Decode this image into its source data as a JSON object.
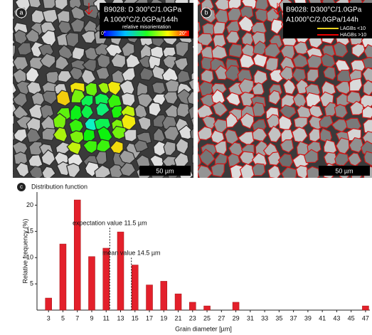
{
  "panel_a": {
    "label": "a",
    "line1": "B9028: D 300°C/1.0GPa",
    "line2": "A 1000°C/2.0GPa/144h",
    "colorbar_title": "relative misorientation",
    "colorbar_min": "0°",
    "colorbar_max": "20°",
    "scale_bar": "50 µm"
  },
  "panel_b": {
    "label": "b",
    "line1": "B9028: D300°C/1.0GPa",
    "line2": "A1000°C/2.0GPa/144h",
    "legend": [
      "LAGBs <10",
      "HAGBs >10"
    ],
    "scale_bar": "50 µm"
  },
  "panel_c": {
    "label": "c"
  },
  "chart_data": {
    "type": "bar",
    "title": "Distribution function",
    "x": [
      3,
      5,
      7,
      9,
      11,
      13,
      15,
      17,
      19,
      21,
      23,
      25,
      27,
      29,
      31,
      33,
      35,
      37,
      39,
      41,
      43,
      45,
      47
    ],
    "values": [
      2.3,
      12.6,
      21,
      10.2,
      11.8,
      14.9,
      8.6,
      4.8,
      5.5,
      3.1,
      1.5,
      0.8,
      0,
      1.5,
      0,
      0,
      0,
      0,
      0,
      0,
      0,
      0,
      0.8
    ],
    "color": "#e3202b",
    "x_label": "Grain diameter [µm]",
    "y_label": "Relative frequency (%)",
    "xlim": [
      1.4,
      47.6
    ],
    "ylim": [
      0,
      22.5
    ],
    "xticks": [
      3,
      5,
      7,
      9,
      11,
      13,
      15,
      17,
      19,
      21,
      23,
      25,
      27,
      29,
      31,
      33,
      35,
      37,
      39,
      41,
      43,
      45,
      47
    ],
    "yticks": [
      5,
      10,
      15,
      20
    ],
    "annotations": [
      {
        "text": "expectation value 11.5 µm",
        "x": 11.5,
        "y": 16.5
      },
      {
        "text": "mean value 14.5 µm",
        "x": 14.5,
        "y": 10.8
      }
    ]
  }
}
